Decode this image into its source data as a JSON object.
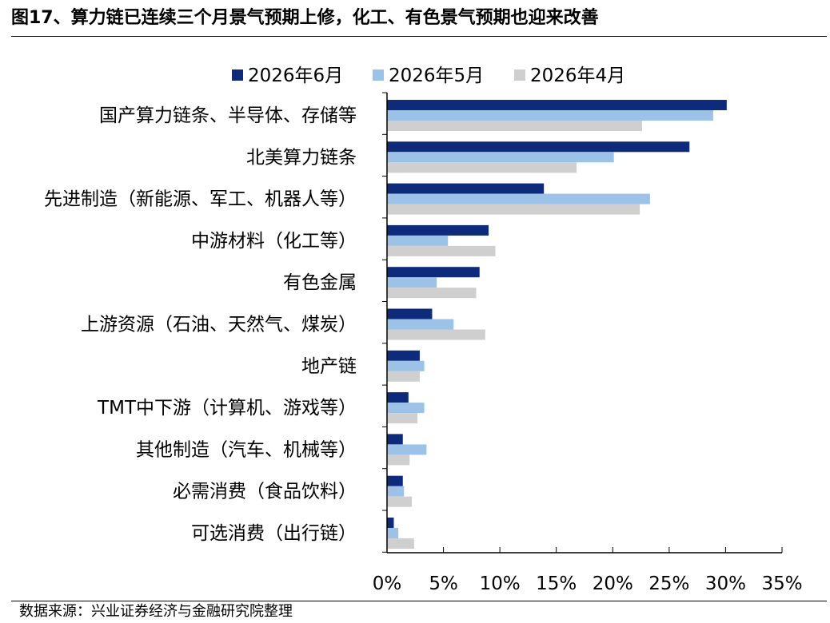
{
  "figure": {
    "title": "图17、算力链已连续三个月景气预期上修，化工、有色景气预期也迎来改善",
    "source": "数据来源：兴业证券经济与金融研究院整理"
  },
  "chart_data": {
    "type": "bar",
    "orientation": "horizontal",
    "categories": [
      "国产算力链条、半导体、存储等",
      "北美算力链条",
      "先进制造（新能源、军工、机器人等）",
      "中游材料（化工等）",
      "有色金属",
      "上游资源（石油、天然气、煤炭）",
      "地产链",
      "TMT中下游（计算机、游戏等）",
      "其他制造（汽车、机械等）",
      "必需消费（食品饮料）",
      "可选消费（出行链）"
    ],
    "series": [
      {
        "name": "2026年6月",
        "color": "#0e2a7b",
        "values": [
          30.1,
          26.8,
          13.9,
          9.0,
          8.2,
          4.0,
          2.9,
          1.9,
          1.4,
          1.4,
          0.6
        ]
      },
      {
        "name": "2026年5月",
        "color": "#9cc2e8",
        "values": [
          28.9,
          20.1,
          23.3,
          5.4,
          4.4,
          5.9,
          3.3,
          3.3,
          3.5,
          1.5,
          1.0
        ]
      },
      {
        "name": "2026年4月",
        "color": "#cfcfcf",
        "values": [
          22.6,
          16.8,
          22.4,
          9.6,
          7.9,
          8.7,
          2.9,
          2.7,
          2.0,
          2.2,
          2.4
        ]
      }
    ],
    "xlim": [
      0,
      35
    ],
    "xticks": [
      0,
      5,
      10,
      15,
      20,
      25,
      30,
      35
    ],
    "tick_format": "percent",
    "grid": false,
    "legend": "top"
  }
}
